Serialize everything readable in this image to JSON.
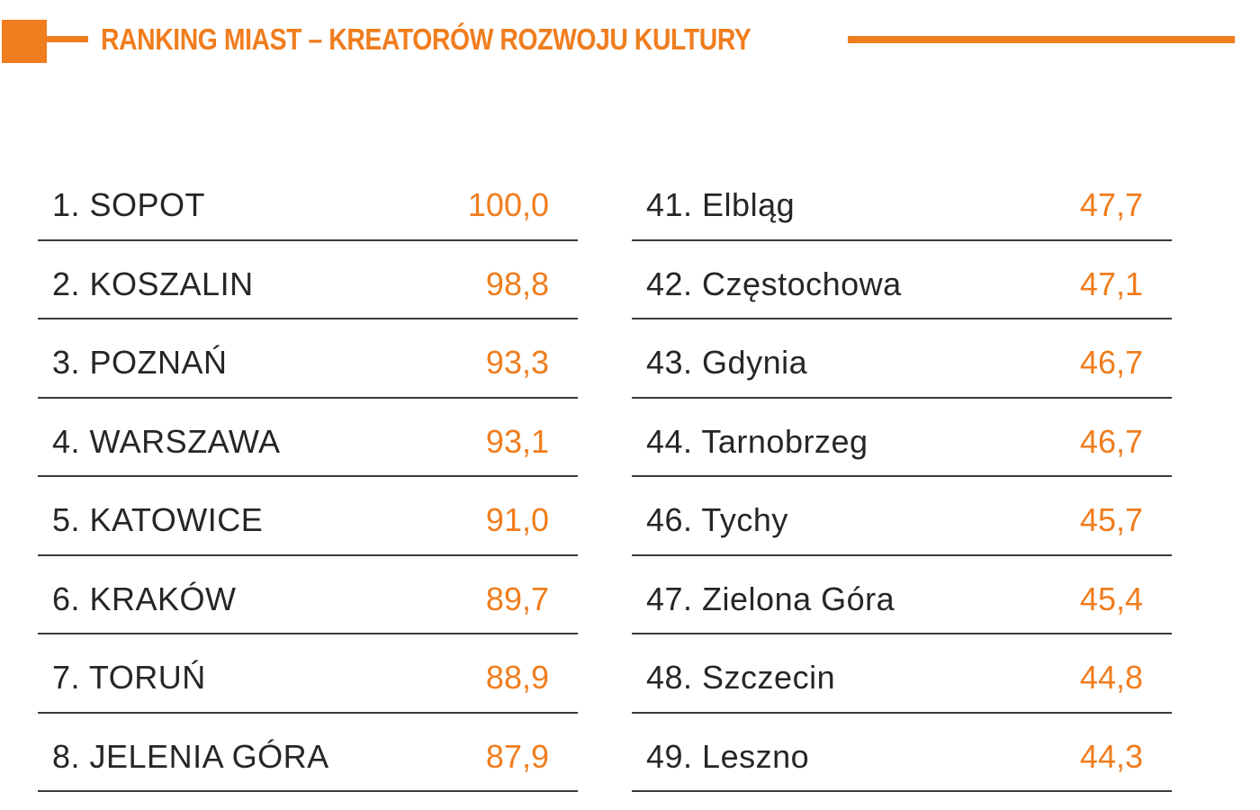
{
  "header": {
    "title": "RANKING MIAST – KREATORÓW ROZWOJU KULTURY",
    "accent_color": "#f07d1e"
  },
  "chart_data": {
    "type": "table",
    "title": "RANKING MIAST – KREATORÓW ROZWOJU KULTURY",
    "columns": [
      {
        "rows": [
          {
            "rank": "1.",
            "city": "SOPOT",
            "score": "100,0"
          },
          {
            "rank": "2.",
            "city": "KOSZALIN",
            "score": "98,8"
          },
          {
            "rank": "3.",
            "city": "POZNAŃ",
            "score": "93,3"
          },
          {
            "rank": "4.",
            "city": "WARSZAWA",
            "score": "93,1"
          },
          {
            "rank": "5.",
            "city": "KATOWICE",
            "score": "91,0"
          },
          {
            "rank": "6.",
            "city": "KRAKÓW",
            "score": "89,7"
          },
          {
            "rank": "7.",
            "city": "TORUŃ",
            "score": "88,9"
          },
          {
            "rank": "8.",
            "city": "JELENIA GÓRA",
            "score": "87,9"
          }
        ]
      },
      {
        "rows": [
          {
            "rank": "41.",
            "city": "Elbląg",
            "score": "47,7"
          },
          {
            "rank": "42.",
            "city": "Częstochowa",
            "score": "47,1"
          },
          {
            "rank": "43.",
            "city": "Gdynia",
            "score": "46,7"
          },
          {
            "rank": "44.",
            "city": "Tarnobrzeg",
            "score": "46,7"
          },
          {
            "rank": "46.",
            "city": "Tychy",
            "score": "45,7"
          },
          {
            "rank": "47.",
            "city": "Zielona Góra",
            "score": "45,4"
          },
          {
            "rank": "48.",
            "city": "Szczecin",
            "score": "44,8"
          },
          {
            "rank": "49.",
            "city": "Leszno",
            "score": "44,3"
          }
        ]
      }
    ]
  }
}
